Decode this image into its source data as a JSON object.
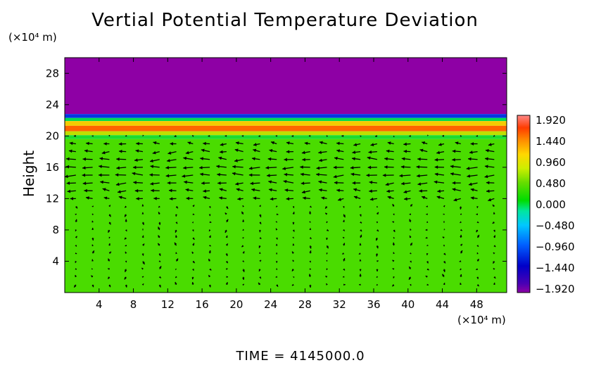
{
  "chart_data": {
    "type": "heatmap",
    "title": "Vertial Potential Temperature Deviation",
    "ylabel": "Height",
    "y_unit_label": "(×10⁴ m)",
    "x_unit_label": "(×10⁴ m)",
    "footer": "TIME = 4145000.0",
    "x_ticks": [
      "4",
      "8",
      "12",
      "16",
      "20",
      "24",
      "28",
      "32",
      "36",
      "40",
      "44",
      "48"
    ],
    "y_ticks": [
      "4",
      "8",
      "12",
      "16",
      "20",
      "24",
      "28"
    ],
    "xlim": [
      0,
      51.5
    ],
    "ylim": [
      0,
      30
    ],
    "colorbar": {
      "ticks": [
        "1.920",
        "1.440",
        "0.960",
        "0.480",
        "0.000",
        "−0.480",
        "−0.960",
        "−1.440",
        "−1.920"
      ],
      "range": [
        -1.92,
        1.92
      ]
    },
    "field_layers": [
      {
        "from": 22.8,
        "to": 30,
        "value": -1.92
      },
      {
        "from": 22.3,
        "to": 22.8,
        "value": -1.0
      },
      {
        "from": 21.9,
        "to": 22.3,
        "value": 0.0
      },
      {
        "from": 21.3,
        "to": 21.9,
        "value": 0.9
      },
      {
        "from": 20.6,
        "to": 21.3,
        "value": 1.4
      },
      {
        "from": 20.1,
        "to": 20.6,
        "value": 0.6
      },
      {
        "from": 19.6,
        "to": 20.1,
        "value": 0.1
      },
      {
        "from": 0,
        "to": 19.6,
        "value": 0.25
      }
    ],
    "wind_vectors": "dense quiver field; strong westward flow between heights 12 and 19, weak near-vertical vectors below 11"
  },
  "colors": {
    "purple": "#8e00a5",
    "field_green": "#44dd00"
  }
}
